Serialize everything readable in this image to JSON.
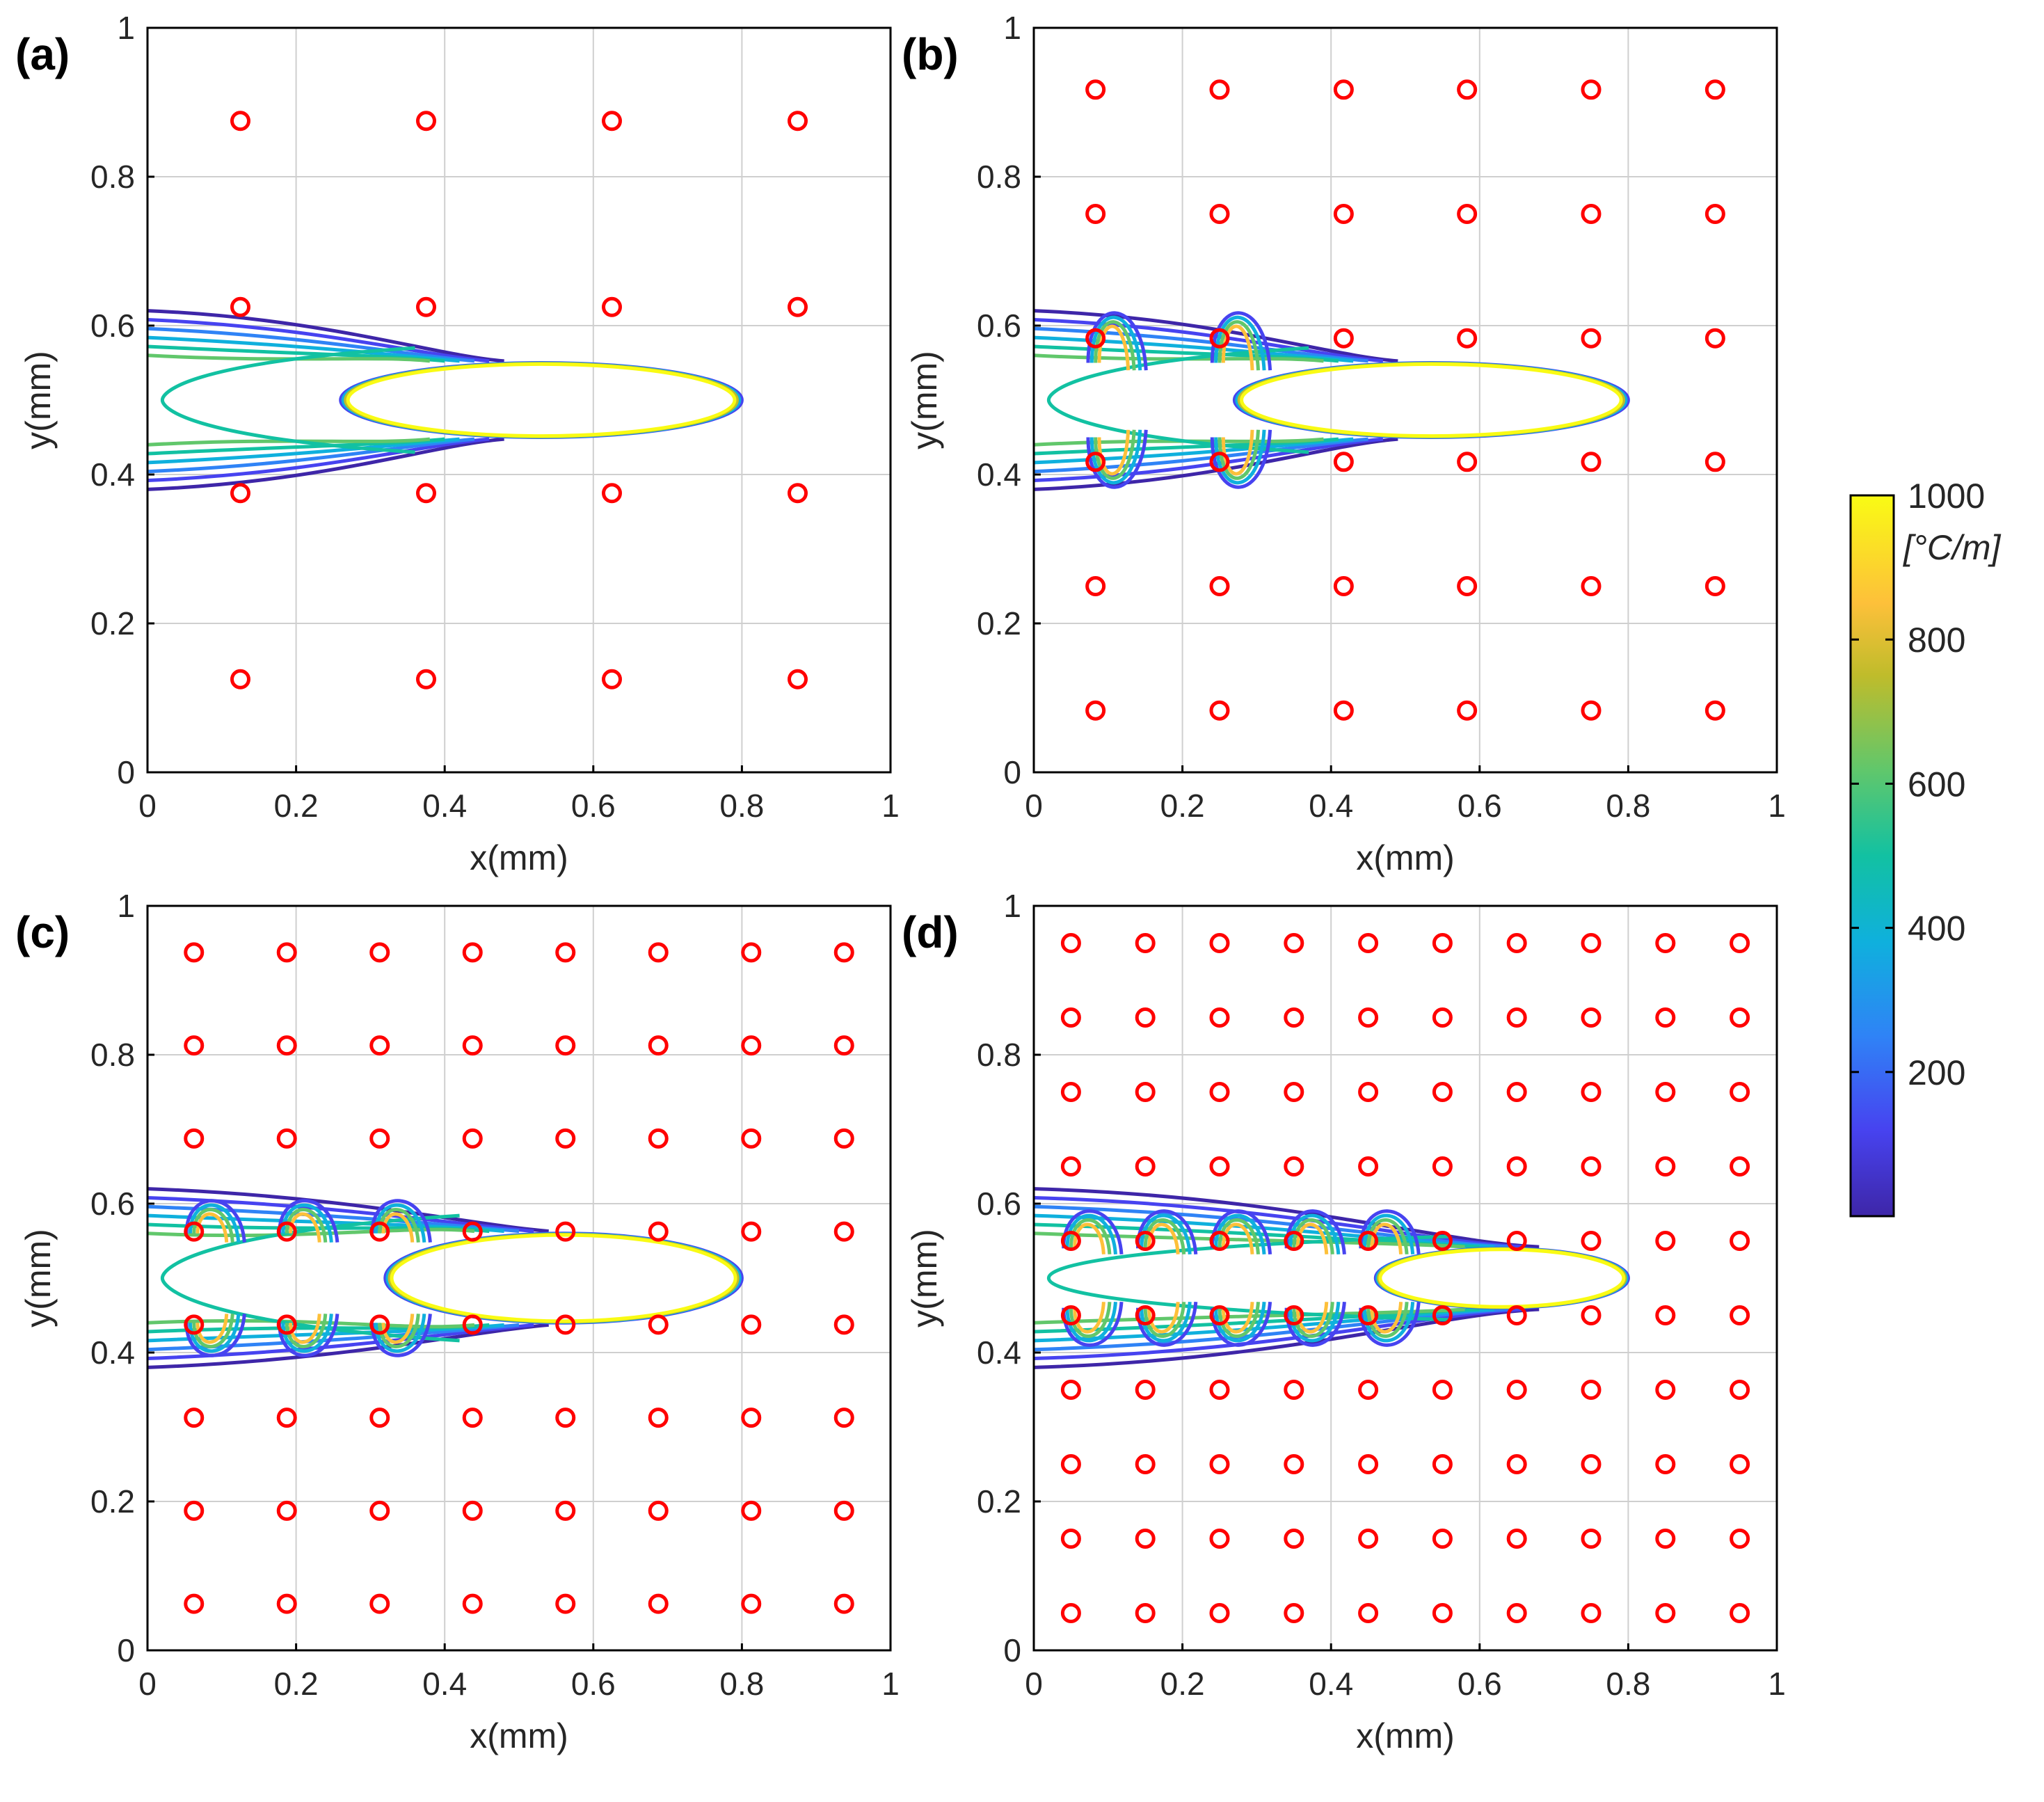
{
  "figure": {
    "colorbar": {
      "min": 0,
      "max": 1000,
      "ticks": [
        "200",
        "400",
        "600",
        "800",
        "1000"
      ],
      "tick_values": [
        200,
        400,
        600,
        800,
        1000
      ],
      "unit": "[°C/m]",
      "colormap": "parula",
      "colors": [
        "#3e26a8",
        "#4743f0",
        "#2f83f6",
        "#0fb0dd",
        "#12c1a2",
        "#61c76b",
        "#bfbc2b",
        "#fdc03a",
        "#f9fb14"
      ]
    },
    "colors": {
      "marker": "#ff0000",
      "grid": "#cfcfcf",
      "axis": "#000000"
    }
  },
  "chart_data": [
    {
      "panel_label": "(a)",
      "type": "scatter",
      "xlabel": "x(mm)",
      "ylabel": "y(mm)",
      "xlim": [
        0,
        1
      ],
      "ylim": [
        0,
        1
      ],
      "xticks": [
        "0",
        "0.2",
        "0.4",
        "0.6",
        "0.8",
        "1"
      ],
      "yticks": [
        "0",
        "0.2",
        "0.4",
        "0.6",
        "0.8",
        "1"
      ],
      "grid": true,
      "markers": {
        "x": [
          0.125,
          0.375,
          0.625,
          0.875
        ],
        "y": [
          0.125,
          0.375,
          0.625,
          0.875
        ]
      },
      "contour": {
        "type": "temperature gradient contour",
        "ellipse_x": [
          0.26,
          0.8
        ],
        "ellipse_y": [
          0.45,
          0.55
        ],
        "tail_start_x": 0.0
      }
    },
    {
      "panel_label": "(b)",
      "type": "scatter",
      "xlabel": "x(mm)",
      "ylabel": "y(mm)",
      "xlim": [
        0,
        1
      ],
      "ylim": [
        0,
        1
      ],
      "xticks": [
        "0",
        "0.2",
        "0.4",
        "0.6",
        "0.8",
        "1"
      ],
      "yticks": [
        "0",
        "0.2",
        "0.4",
        "0.6",
        "0.8",
        "1"
      ],
      "grid": true,
      "markers": {
        "x": [
          0.083,
          0.25,
          0.417,
          0.583,
          0.75,
          0.917
        ],
        "y": [
          0.083,
          0.25,
          0.417,
          0.583,
          0.75,
          0.917
        ]
      },
      "contour": {
        "type": "temperature gradient contour",
        "ellipse_x": [
          0.27,
          0.8
        ],
        "ellipse_y": [
          0.45,
          0.55
        ],
        "tail_start_x": 0.0
      }
    },
    {
      "panel_label": "(c)",
      "type": "scatter",
      "xlabel": "x(mm)",
      "ylabel": "y(mm)",
      "xlim": [
        0,
        1
      ],
      "ylim": [
        0,
        1
      ],
      "xticks": [
        "0",
        "0.2",
        "0.4",
        "0.6",
        "0.8",
        "1"
      ],
      "yticks": [
        "0",
        "0.2",
        "0.4",
        "0.6",
        "0.8",
        "1"
      ],
      "grid": true,
      "markers": {
        "x": [
          0.0625,
          0.1875,
          0.3125,
          0.4375,
          0.5625,
          0.6875,
          0.8125,
          0.9375
        ],
        "y": [
          0.0625,
          0.1875,
          0.3125,
          0.4375,
          0.5625,
          0.6875,
          0.8125,
          0.9375
        ]
      },
      "contour": {
        "type": "temperature gradient contour",
        "ellipse_x": [
          0.32,
          0.8
        ],
        "ellipse_y": [
          0.44,
          0.56
        ],
        "tail_start_x": 0.0
      }
    },
    {
      "panel_label": "(d)",
      "type": "scatter",
      "xlabel": "x(mm)",
      "ylabel": "y(mm)",
      "xlim": [
        0,
        1
      ],
      "ylim": [
        0,
        1
      ],
      "xticks": [
        "0",
        "0.2",
        "0.4",
        "0.6",
        "0.8",
        "1"
      ],
      "yticks": [
        "0",
        "0.2",
        "0.4",
        "0.6",
        "0.8",
        "1"
      ],
      "grid": true,
      "markers": {
        "x": [
          0.05,
          0.15,
          0.25,
          0.35,
          0.45,
          0.55,
          0.65,
          0.75,
          0.85,
          0.95
        ],
        "y": [
          0.05,
          0.15,
          0.25,
          0.35,
          0.45,
          0.55,
          0.65,
          0.75,
          0.85,
          0.95
        ]
      },
      "contour": {
        "type": "temperature gradient contour",
        "ellipse_x": [
          0.46,
          0.8
        ],
        "ellipse_y": [
          0.46,
          0.54
        ],
        "tail_start_x": 0.0
      }
    }
  ]
}
